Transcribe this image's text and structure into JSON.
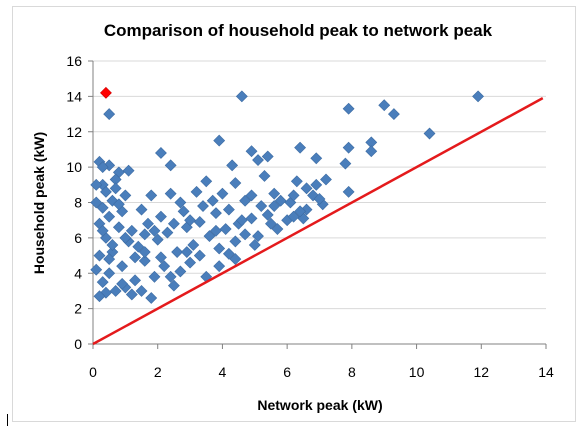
{
  "chart_data": {
    "type": "scatter",
    "title": "Comparison of household peak to network peak",
    "xlabel": "Network peak (kW)",
    "ylabel": "Household peak (kW)",
    "xlim": [
      0,
      14
    ],
    "ylim": [
      0,
      16
    ],
    "x_ticks": [
      "0",
      "2",
      "4",
      "6",
      "8",
      "10",
      "12",
      "14"
    ],
    "y_ticks": [
      "0",
      "2",
      "4",
      "6",
      "8",
      "10",
      "12",
      "14",
      "16"
    ],
    "grid": "horizontal",
    "legend": "none",
    "colors": {
      "points": "#4a7ebb",
      "highlight": "#ff0000",
      "reference_line": "#e41a1c"
    },
    "reference_line": {
      "from": [
        0,
        0
      ],
      "to": [
        13.9,
        13.9
      ]
    },
    "highlight_point": {
      "x": 0.4,
      "y": 14.2
    },
    "series": [
      {
        "values": [
          [
            0.5,
            13.0
          ],
          [
            4.6,
            14.0
          ],
          [
            7.9,
            13.3
          ],
          [
            9.0,
            13.5
          ],
          [
            9.3,
            13.0
          ],
          [
            11.9,
            14.0
          ],
          [
            10.4,
            11.9
          ],
          [
            7.9,
            11.1
          ],
          [
            8.6,
            11.4
          ],
          [
            8.6,
            10.9
          ],
          [
            7.8,
            10.2
          ],
          [
            6.9,
            10.5
          ],
          [
            6.4,
            11.1
          ],
          [
            5.4,
            10.6
          ],
          [
            4.9,
            10.9
          ],
          [
            5.1,
            10.4
          ],
          [
            3.9,
            11.5
          ],
          [
            2.1,
            10.8
          ],
          [
            2.4,
            10.1
          ],
          [
            0.2,
            10.3
          ],
          [
            0.5,
            10.1
          ],
          [
            0.8,
            9.7
          ],
          [
            0.7,
            9.3
          ],
          [
            1.1,
            9.8
          ],
          [
            0.3,
            9.0
          ],
          [
            4.3,
            10.1
          ],
          [
            7.9,
            8.6
          ],
          [
            6.6,
            8.8
          ],
          [
            6.8,
            8.4
          ],
          [
            6.3,
            9.2
          ],
          [
            6.9,
            9.0
          ],
          [
            6.1,
            8.0
          ],
          [
            7.1,
            7.9
          ],
          [
            6.6,
            7.6
          ],
          [
            6.5,
            7.1
          ],
          [
            6.0,
            7.0
          ],
          [
            5.7,
            6.5
          ],
          [
            5.1,
            6.1
          ],
          [
            5.4,
            7.3
          ],
          [
            5.3,
            9.5
          ],
          [
            5.6,
            8.5
          ],
          [
            4.9,
            8.4
          ],
          [
            4.4,
            9.1
          ],
          [
            4.7,
            8.1
          ],
          [
            4.2,
            7.6
          ],
          [
            4.5,
            6.8
          ],
          [
            3.8,
            7.4
          ],
          [
            3.4,
            7.8
          ],
          [
            3.2,
            8.6
          ],
          [
            3.5,
            9.2
          ],
          [
            2.7,
            8.0
          ],
          [
            2.4,
            8.5
          ],
          [
            2.1,
            7.2
          ],
          [
            1.8,
            8.4
          ],
          [
            1.5,
            7.6
          ],
          [
            1.2,
            6.4
          ],
          [
            1.4,
            5.5
          ],
          [
            1.7,
            6.8
          ],
          [
            2.0,
            5.9
          ],
          [
            2.3,
            6.3
          ],
          [
            2.6,
            5.2
          ],
          [
            2.9,
            6.6
          ],
          [
            3.1,
            5.6
          ],
          [
            3.6,
            6.1
          ],
          [
            3.9,
            5.4
          ],
          [
            4.1,
            6.5
          ],
          [
            4.4,
            5.8
          ],
          [
            4.7,
            6.2
          ],
          [
            5.0,
            5.6
          ],
          [
            3.0,
            4.6
          ],
          [
            2.7,
            4.1
          ],
          [
            2.2,
            4.4
          ],
          [
            1.9,
            3.8
          ],
          [
            1.6,
            4.7
          ],
          [
            1.3,
            3.6
          ],
          [
            1.0,
            3.2
          ],
          [
            0.7,
            3.0
          ],
          [
            0.4,
            2.9
          ],
          [
            0.2,
            2.7
          ],
          [
            0.5,
            4.0
          ],
          [
            0.3,
            3.5
          ],
          [
            0.6,
            5.2
          ],
          [
            0.9,
            4.4
          ],
          [
            1.1,
            5.8
          ],
          [
            0.4,
            6.0
          ],
          [
            0.8,
            6.6
          ],
          [
            0.2,
            6.8
          ],
          [
            0.5,
            7.2
          ],
          [
            0.9,
            7.5
          ],
          [
            0.3,
            7.7
          ],
          [
            0.6,
            8.1
          ],
          [
            1.0,
            8.4
          ],
          [
            0.1,
            8.0
          ],
          [
            0.4,
            8.6
          ],
          [
            0.7,
            8.8
          ],
          [
            0.2,
            5.0
          ],
          [
            0.1,
            4.2
          ],
          [
            0.5,
            4.8
          ],
          [
            1.2,
            2.8
          ],
          [
            1.8,
            2.6
          ],
          [
            2.5,
            3.3
          ],
          [
            3.5,
            3.8
          ],
          [
            4.4,
            4.8
          ],
          [
            3.3,
            5.0
          ],
          [
            2.4,
            3.8
          ],
          [
            1.5,
            3.0
          ],
          [
            0.9,
            3.4
          ],
          [
            0.3,
            6.4
          ],
          [
            0.6,
            5.6
          ],
          [
            1.0,
            6.0
          ],
          [
            5.8,
            8.1
          ],
          [
            6.2,
            8.4
          ],
          [
            5.6,
            7.8
          ],
          [
            6.4,
            7.5
          ],
          [
            7.0,
            8.2
          ],
          [
            7.2,
            9.3
          ],
          [
            5.2,
            7.8
          ],
          [
            4.9,
            7.1
          ],
          [
            4.0,
            8.5
          ],
          [
            3.7,
            8.1
          ],
          [
            3.0,
            7.0
          ],
          [
            2.8,
            7.5
          ],
          [
            2.5,
            6.8
          ],
          [
            1.9,
            6.4
          ],
          [
            1.6,
            5.2
          ],
          [
            2.1,
            4.9
          ],
          [
            3.3,
            6.9
          ],
          [
            3.8,
            6.4
          ],
          [
            4.6,
            7.0
          ],
          [
            5.5,
            6.8
          ],
          [
            6.2,
            7.2
          ],
          [
            4.2,
            5.1
          ],
          [
            3.9,
            4.4
          ],
          [
            2.9,
            5.2
          ],
          [
            1.3,
            4.9
          ],
          [
            1.6,
            6.2
          ],
          [
            0.8,
            7.9
          ],
          [
            0.1,
            9.0
          ],
          [
            0.3,
            10.0
          ]
        ]
      }
    ]
  }
}
